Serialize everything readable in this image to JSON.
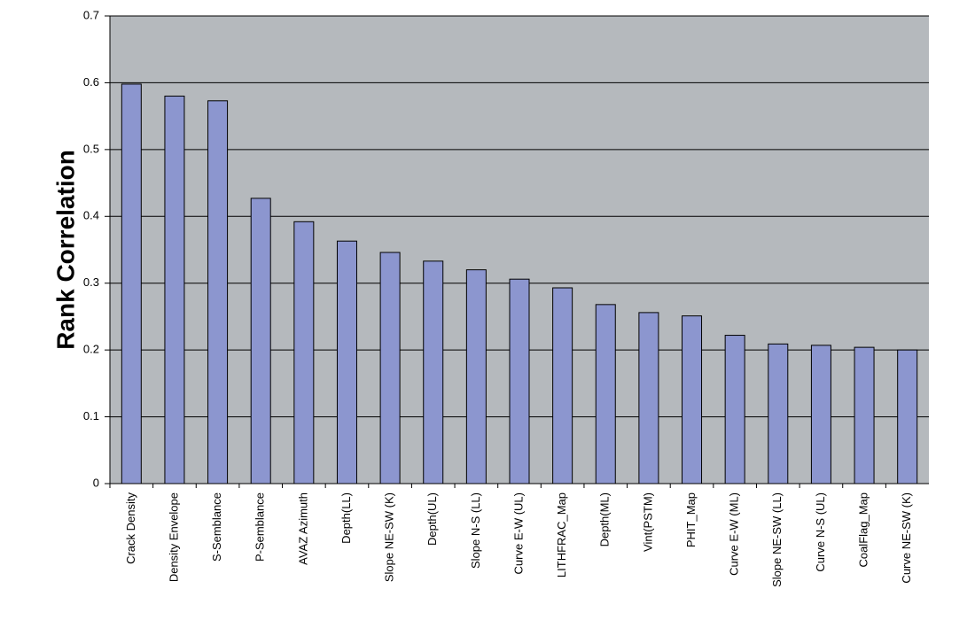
{
  "chart_data": {
    "type": "bar",
    "y_label": "Rank Correlation",
    "categories": [
      "Crack Density",
      "Density Envelope",
      "S-Semblance",
      "P-Semblance",
      "AVAZ Azimuth",
      "Depth(LL)",
      "Slope NE-SW (K)",
      "Depth(UL)",
      "Slope N-S (LL)",
      "Curve E-W (UL)",
      "LITHFRAC_Map",
      "Depth(ML)",
      "Vint(PSTM)",
      "PHIT_Map",
      "Curve E-W (ML)",
      "Slope NE-SW (LL)",
      "Curve N-S (UL)",
      "CoalFlag_Map",
      "Curve NE-SW (K)"
    ],
    "values": [
      0.598,
      0.58,
      0.573,
      0.427,
      0.392,
      0.363,
      0.346,
      0.333,
      0.32,
      0.306,
      0.293,
      0.268,
      0.256,
      0.251,
      0.222,
      0.209,
      0.207,
      0.204,
      0.2
    ],
    "color": "#8c96cf",
    "background": "#b5b9bd",
    "ylim": [
      0,
      0.7
    ],
    "yticks": [
      0,
      0.1,
      0.2,
      0.3,
      0.4,
      0.5,
      0.6,
      0.7
    ],
    "grid": true
  }
}
